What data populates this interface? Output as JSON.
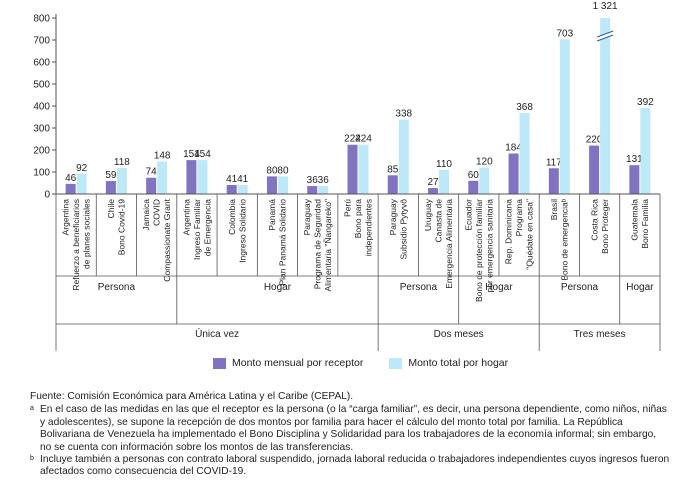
{
  "chart_data": {
    "type": "bar",
    "title": "",
    "xlabel": "",
    "ylabel": "",
    "ylim": [
      0,
      800
    ],
    "yticks": [
      "0",
      "100",
      "200",
      "300",
      "400",
      "500",
      "600",
      "700",
      "800"
    ],
    "grid": false,
    "legend_position": "bottom",
    "categories": [
      [
        "Argentina",
        "Refuerzo a beneficiarios",
        "de planes sociales"
      ],
      [
        "Chile",
        "Bono Covid-19"
      ],
      [
        "Jamaica",
        "COVID",
        "Compassionate Grant"
      ],
      [
        "Argentina",
        "Ingreso Familiar",
        "de Emergencia"
      ],
      [
        "Colombia",
        "Ingreso Solidario"
      ],
      [
        "Panamá",
        "Plan Panamá Solidario"
      ],
      [
        "Paraguay",
        "Programa de Seguridad",
        "Alimentaria \"Ñangareko\""
      ],
      [
        "Perú",
        "Bono para",
        "independientes"
      ],
      [
        "Paraguay",
        "Subsidio Pytyvõ"
      ],
      [
        "Uruguay",
        "Canasta de",
        "Emergencia Alimentaria"
      ],
      [
        "Ecuador",
        "Bono de protección familiar",
        "por emergencia sanitaria"
      ],
      [
        "Rep. Dominicana",
        "Programa",
        "\"Quédate en casa\""
      ],
      [
        "Brasil",
        "Bono de emergenciaᵇ"
      ],
      [
        "Costa Rica",
        "Bono Proteger"
      ],
      [
        "Guatemala",
        "Bono Familia"
      ]
    ],
    "series": [
      {
        "name": "Monto mensual por receptor",
        "color": "#8173c0",
        "values": [
          46,
          59,
          74,
          154,
          41,
          80,
          36,
          224,
          85,
          27,
          60,
          184,
          117,
          220,
          131
        ],
        "labels": [
          "46",
          "59",
          "74",
          "154",
          "41",
          "80",
          "36",
          "224",
          "85",
          "27",
          "60",
          "184",
          "117",
          "220",
          "131"
        ]
      },
      {
        "name": "Monto total por hogar",
        "color": "#bde8f7",
        "values": [
          92,
          118,
          148,
          154,
          41,
          80,
          36,
          224,
          338,
          110,
          120,
          368,
          703,
          1321,
          392
        ],
        "labels": [
          "92",
          "118",
          "148",
          "154",
          "41",
          "80",
          "36",
          "224",
          "338",
          "110",
          "120",
          "368",
          "703",
          "1 321",
          "392"
        ]
      }
    ],
    "axis_break": {
      "category_index": 13,
      "series_index": 1
    },
    "group_levels": [
      [
        {
          "label": "Persona",
          "start": 0,
          "end": 2
        },
        {
          "label": "Hogar",
          "start": 3,
          "end": 7
        },
        {
          "label": "Persona",
          "start": 8,
          "end": 9
        },
        {
          "label": "Hogar",
          "start": 10,
          "end": 11
        },
        {
          "label": "Persona",
          "start": 12,
          "end": 13
        },
        {
          "label": "Hogar",
          "start": 14,
          "end": 14
        }
      ],
      [
        {
          "label": "Única vez",
          "start": 0,
          "end": 7
        },
        {
          "label": "Dos meses",
          "start": 8,
          "end": 11
        },
        {
          "label": "Tres meses",
          "start": 12,
          "end": 14
        }
      ]
    ]
  },
  "notes": {
    "source": "Fuente: Comisión Económica para América Latina y el Caribe (CEPAL).",
    "a_marker": "a",
    "a_text": "En el caso de las medidas en las que el receptor es la persona (o la “carga familiar”, es decir, una persona dependiente, como niños, niñas y adolescentes), se supone la recepción de dos montos por familia para hacer el cálculo del monto total por familia. La República Bolivariana de Venezuela ha implementado el Bono Disciplina y Solidaridad para los trabajadores de la economía informal; sin embargo, no se cuenta con información sobre los montos de las transferencias.",
    "b_marker": "b",
    "b_text": "Incluye también a personas con contrato laboral suspendido, jornada laboral reducida o trabajadores independientes cuyos ingresos fueron afectados como consecuencia del COVID-19."
  }
}
